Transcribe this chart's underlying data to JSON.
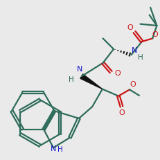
{
  "bg_color": "#eaeaea",
  "bond_color": "#2d6b5a",
  "N_color": "#1515cc",
  "O_color": "#cc1515",
  "black": "#111111",
  "lw": 1.6,
  "atoms": {
    "comment": "all coords in data space 0-300, will be normalized"
  }
}
